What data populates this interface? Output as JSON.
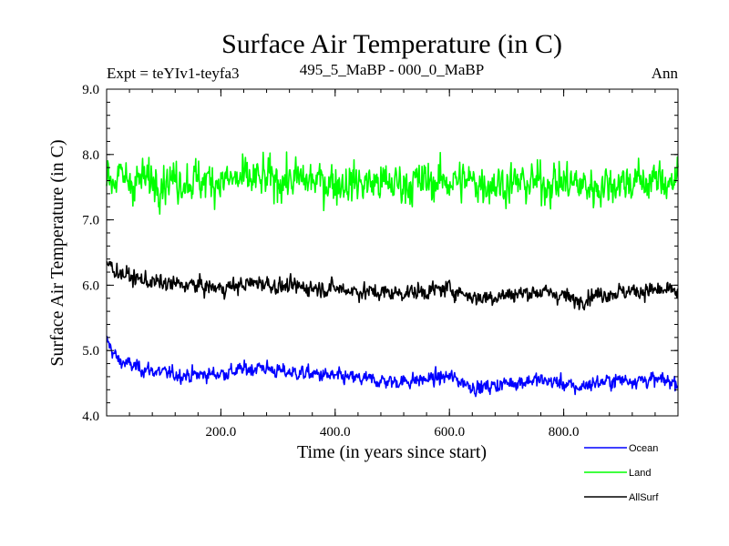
{
  "chart_data": {
    "type": "line",
    "title": "Surface Air Temperature (in C)",
    "experiment_label": "Expt = teYIv1-teyfa3",
    "period_label": "495_5_MaBP - 000_0_MaBP",
    "season_label": "Ann",
    "xlabel": "Time (in years since start)",
    "ylabel": "Surface Air Temperature (in C)",
    "xlim": [
      0,
      1000
    ],
    "ylim": [
      4.0,
      9.0
    ],
    "x_ticks": [
      200,
      400,
      600,
      800
    ],
    "x_tick_labels": [
      "200.0",
      "400.0",
      "600.0",
      "800.0"
    ],
    "y_ticks": [
      4.0,
      5.0,
      6.0,
      7.0,
      8.0,
      9.0
    ],
    "y_tick_labels": [
      "4.0",
      "5.0",
      "6.0",
      "7.0",
      "8.0",
      "9.0"
    ],
    "legend_position": "bottom-right",
    "series": [
      {
        "name": "Ocean",
        "color": "#0000ff",
        "x": [
          0,
          20,
          50,
          100,
          150,
          200,
          250,
          270,
          300,
          350,
          400,
          450,
          500,
          550,
          600,
          650,
          700,
          750,
          800,
          820,
          850,
          900,
          950,
          1000
        ],
        "values": [
          5.15,
          4.85,
          4.75,
          4.65,
          4.62,
          4.65,
          4.72,
          4.75,
          4.68,
          4.65,
          4.6,
          4.56,
          4.52,
          4.55,
          4.6,
          4.42,
          4.5,
          4.55,
          4.5,
          4.42,
          4.5,
          4.55,
          4.55,
          4.52
        ],
        "noise": 0.09
      },
      {
        "name": "Land",
        "color": "#00ff00",
        "x": [
          0,
          50,
          100,
          200,
          300,
          400,
          500,
          600,
          700,
          800,
          850,
          900,
          950,
          1000
        ],
        "values": [
          7.65,
          7.6,
          7.62,
          7.6,
          7.62,
          7.58,
          7.55,
          7.6,
          7.55,
          7.58,
          7.5,
          7.58,
          7.6,
          7.6
        ],
        "noise": 0.25
      },
      {
        "name": "AllSurf",
        "color": "#000000",
        "x": [
          0,
          20,
          50,
          100,
          150,
          200,
          250,
          270,
          300,
          350,
          400,
          450,
          500,
          550,
          600,
          650,
          700,
          750,
          800,
          820,
          850,
          900,
          950,
          1000
        ],
        "values": [
          6.35,
          6.2,
          6.1,
          6.02,
          6.0,
          5.95,
          6.02,
          6.05,
          5.98,
          5.97,
          5.95,
          5.9,
          5.88,
          5.9,
          5.95,
          5.8,
          5.85,
          5.9,
          5.85,
          5.75,
          5.85,
          5.9,
          5.92,
          5.9
        ],
        "noise": 0.1
      }
    ]
  }
}
